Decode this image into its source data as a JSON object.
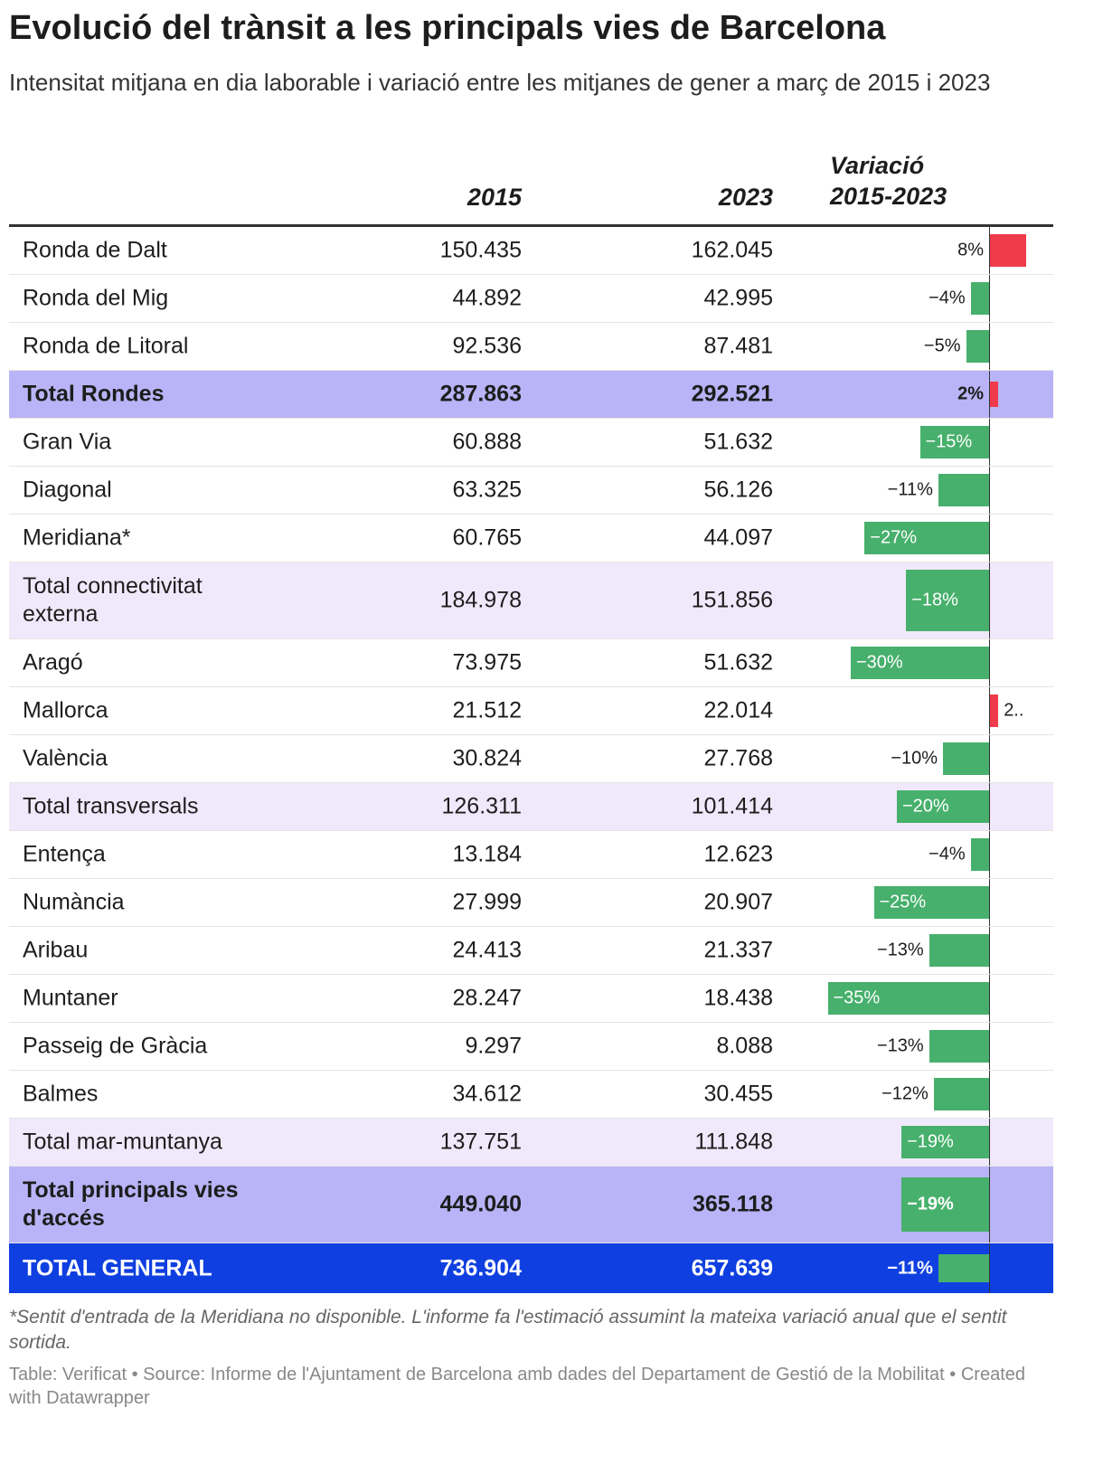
{
  "header": {
    "title": "Evolució del trànsit a les principals vies de Barcelona",
    "subtitle": "Intensitat mitjana en dia laborable i variació entre les mitjanes de gener a març de 2015 i 2023"
  },
  "table": {
    "columns": [
      "2015",
      "2023",
      "Variació 2015-2023"
    ],
    "rows": [
      {
        "name": "Ronda de Dalt",
        "y2015": "150.435",
        "y2023": "162.045",
        "variation": 8,
        "variation_label": "8%",
        "kind": "regular"
      },
      {
        "name": "Ronda del Mig",
        "y2015": "44.892",
        "y2023": "42.995",
        "variation": -4,
        "variation_label": "−4%",
        "kind": "regular"
      },
      {
        "name": "Ronda de Litoral",
        "y2015": "92.536",
        "y2023": "87.481",
        "variation": -5,
        "variation_label": "−5%",
        "kind": "regular"
      },
      {
        "name": "Total Rondes",
        "y2015": "287.863",
        "y2023": "292.521",
        "variation": 2,
        "variation_label": "2%",
        "kind": "total"
      },
      {
        "name": "Gran Via",
        "y2015": "60.888",
        "y2023": "51.632",
        "variation": -15,
        "variation_label": "−15%",
        "kind": "regular"
      },
      {
        "name": "Diagonal",
        "y2015": "63.325",
        "y2023": "56.126",
        "variation": -11,
        "variation_label": "−11%",
        "kind": "regular"
      },
      {
        "name": "Meridiana*",
        "y2015": "60.765",
        "y2023": "44.097",
        "variation": -27,
        "variation_label": "−27%",
        "kind": "regular"
      },
      {
        "name": "Total connectivitat externa",
        "y2015": "184.978",
        "y2023": "151.856",
        "variation": -18,
        "variation_label": "−18%",
        "kind": "subtotal"
      },
      {
        "name": "Aragó",
        "y2015": "73.975",
        "y2023": "51.632",
        "variation": -30,
        "variation_label": "−30%",
        "kind": "regular"
      },
      {
        "name": "Mallorca",
        "y2015": "21.512",
        "y2023": "22.014",
        "variation": 2,
        "variation_label": "2..",
        "kind": "regular"
      },
      {
        "name": "València",
        "y2015": "30.824",
        "y2023": "27.768",
        "variation": -10,
        "variation_label": "−10%",
        "kind": "regular"
      },
      {
        "name": "Total transversals",
        "y2015": "126.311",
        "y2023": "101.414",
        "variation": -20,
        "variation_label": "−20%",
        "kind": "subtotal"
      },
      {
        "name": "Entença",
        "y2015": "13.184",
        "y2023": "12.623",
        "variation": -4,
        "variation_label": "−4%",
        "kind": "regular"
      },
      {
        "name": "Numància",
        "y2015": "27.999",
        "y2023": "20.907",
        "variation": -25,
        "variation_label": "−25%",
        "kind": "regular"
      },
      {
        "name": "Aribau",
        "y2015": "24.413",
        "y2023": "21.337",
        "variation": -13,
        "variation_label": "−13%",
        "kind": "regular"
      },
      {
        "name": "Muntaner",
        "y2015": "28.247",
        "y2023": "18.438",
        "variation": -35,
        "variation_label": "−35%",
        "kind": "regular"
      },
      {
        "name": "Passeig de Gràcia",
        "y2015": "9.297",
        "y2023": "8.088",
        "variation": -13,
        "variation_label": "−13%",
        "kind": "regular"
      },
      {
        "name": "Balmes",
        "y2015": "34.612",
        "y2023": "30.455",
        "variation": -12,
        "variation_label": "−12%",
        "kind": "regular"
      },
      {
        "name": "Total mar-muntanya",
        "y2015": "137.751",
        "y2023": "111.848",
        "variation": -19,
        "variation_label": "−19%",
        "kind": "subtotal"
      },
      {
        "name": "Total principals vies d'accés",
        "y2015": "449.040",
        "y2023": "365.118",
        "variation": -19,
        "variation_label": "−19%",
        "kind": "total"
      },
      {
        "name": "TOTAL GENERAL",
        "y2015": "736.904",
        "y2023": "657.639",
        "variation": -11,
        "variation_label": "−11%",
        "kind": "grand"
      }
    ]
  },
  "footer": {
    "note": "*Sentit d'entrada de la Meridiana no disponible. L'informe fa l'estimació assumint la mateixa variació anual que el sentit sortida.",
    "source": "Table: Verificat • Source: Informe de l'Ajuntament de Barcelona amb dades del Departament de Gestió de la Mobilitat • Created with Datawrapper"
  }
}
